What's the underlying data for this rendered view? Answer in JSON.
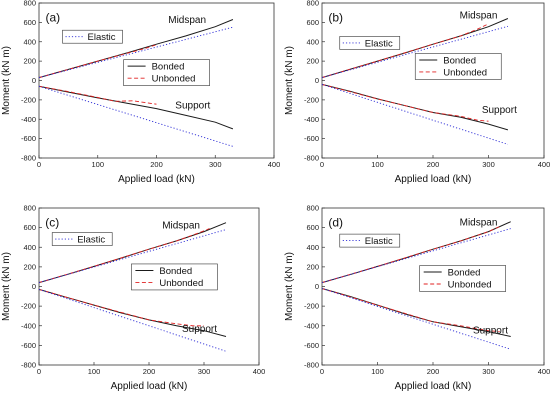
{
  "figure": {
    "colors": {
      "bonded": "#1a1a1a",
      "unbonded": "#e02020",
      "elastic": "#2b2bd6",
      "axis": "#333333"
    }
  },
  "chart_data": [
    {
      "type": "line",
      "panel_label": "(a)",
      "xlabel": "Applied load (kN)",
      "ylabel": "Moment (kN m)",
      "xlim": [
        0,
        400
      ],
      "ylim": [
        -800,
        800
      ],
      "xticks": [
        0,
        100,
        200,
        300,
        400
      ],
      "yticks": [
        -800,
        -600,
        -400,
        -200,
        0,
        200,
        400,
        600,
        800
      ],
      "annotations": {
        "midspan": "Midspan",
        "support": "Support"
      },
      "legend": {
        "elastic": "Elastic",
        "bonded": "Bonded",
        "unbonded": "Unbonded"
      },
      "series": [
        {
          "name": "Bonded",
          "group": "midspan",
          "style": "solid",
          "x": [
            0,
            50,
            100,
            150,
            200,
            250,
            300,
            330
          ],
          "y": [
            30,
            115,
            200,
            285,
            375,
            460,
            555,
            630
          ]
        },
        {
          "name": "Unbonded",
          "group": "midspan",
          "style": "dashed",
          "x": [
            0,
            50,
            100,
            140,
            180,
            200
          ],
          "y": [
            30,
            115,
            200,
            265,
            330,
            370
          ]
        },
        {
          "name": "Elastic",
          "group": "midspan",
          "style": "dotted",
          "x": [
            0,
            330
          ],
          "y": [
            30,
            550
          ]
        },
        {
          "name": "Bonded",
          "group": "support",
          "style": "solid",
          "x": [
            0,
            50,
            100,
            150,
            200,
            250,
            300,
            330
          ],
          "y": [
            -60,
            -120,
            -180,
            -235,
            -290,
            -360,
            -430,
            -500
          ]
        },
        {
          "name": "Unbonded",
          "group": "support",
          "style": "dashed",
          "x": [
            0,
            50,
            100,
            130,
            160,
            200
          ],
          "y": [
            -60,
            -115,
            -175,
            -215,
            -210,
            -245
          ]
        },
        {
          "name": "Elastic",
          "group": "support",
          "style": "dotted",
          "x": [
            0,
            330
          ],
          "y": [
            -60,
            -680
          ]
        }
      ]
    },
    {
      "type": "line",
      "panel_label": "(b)",
      "xlabel": "Applied load (kN)",
      "ylabel": "Moment (kN m)",
      "xlim": [
        0,
        400
      ],
      "ylim": [
        -800,
        800
      ],
      "xticks": [
        0,
        100,
        200,
        300,
        400
      ],
      "yticks": [
        -800,
        -600,
        -400,
        -200,
        0,
        200,
        400,
        600,
        800
      ],
      "annotations": {
        "midspan": "Midspan",
        "support": "Support"
      },
      "legend": {
        "elastic": "Elastic",
        "bonded": "Bonded",
        "unbonded": "Unbonded"
      },
      "series": [
        {
          "name": "Bonded",
          "group": "midspan",
          "style": "solid",
          "x": [
            0,
            50,
            100,
            150,
            200,
            250,
            300,
            335
          ],
          "y": [
            30,
            115,
            200,
            285,
            375,
            460,
            555,
            640
          ]
        },
        {
          "name": "Unbonded",
          "group": "midspan",
          "style": "dashed",
          "x": [
            0,
            100,
            200,
            250,
            280,
            300
          ],
          "y": [
            30,
            200,
            375,
            460,
            530,
            585
          ]
        },
        {
          "name": "Elastic",
          "group": "midspan",
          "style": "dotted",
          "x": [
            0,
            335
          ],
          "y": [
            30,
            560
          ]
        },
        {
          "name": "Bonded",
          "group": "support",
          "style": "solid",
          "x": [
            0,
            50,
            100,
            150,
            200,
            250,
            300,
            335
          ],
          "y": [
            -40,
            -110,
            -190,
            -260,
            -330,
            -380,
            -450,
            -510
          ]
        },
        {
          "name": "Unbonded",
          "group": "support",
          "style": "dashed",
          "x": [
            0,
            100,
            200,
            250,
            280,
            300
          ],
          "y": [
            -40,
            -190,
            -330,
            -370,
            -410,
            -420
          ]
        },
        {
          "name": "Elastic",
          "group": "support",
          "style": "dotted",
          "x": [
            0,
            335
          ],
          "y": [
            -40,
            -660
          ]
        }
      ]
    },
    {
      "type": "line",
      "panel_label": "(c)",
      "xlabel": "Applied load (kN)",
      "ylabel": "Moment (kN m)",
      "xlim": [
        0,
        400
      ],
      "ylim": [
        -800,
        800
      ],
      "xticks": [
        0,
        100,
        200,
        300,
        400
      ],
      "yticks": [
        -800,
        -600,
        -400,
        -200,
        0,
        200,
        400,
        600,
        800
      ],
      "annotations": {
        "midspan": "Midspan",
        "support": "Support"
      },
      "legend": {
        "elastic": "Elastic",
        "bonded": "Bonded",
        "unbonded": "Unbonded"
      },
      "series": [
        {
          "name": "Bonded",
          "group": "midspan",
          "style": "solid",
          "x": [
            0,
            50,
            100,
            150,
            200,
            250,
            300,
            340
          ],
          "y": [
            40,
            120,
            205,
            290,
            380,
            465,
            560,
            650
          ]
        },
        {
          "name": "Unbonded",
          "group": "midspan",
          "style": "dashed",
          "x": [
            0,
            100,
            200,
            250,
            290,
            310
          ],
          "y": [
            40,
            205,
            380,
            465,
            545,
            590
          ]
        },
        {
          "name": "Elastic",
          "group": "midspan",
          "style": "dotted",
          "x": [
            0,
            340
          ],
          "y": [
            40,
            580
          ]
        },
        {
          "name": "Bonded",
          "group": "support",
          "style": "solid",
          "x": [
            0,
            50,
            100,
            150,
            200,
            250,
            300,
            340
          ],
          "y": [
            -30,
            -110,
            -190,
            -270,
            -340,
            -400,
            -450,
            -510
          ]
        },
        {
          "name": "Unbonded",
          "group": "support",
          "style": "dashed",
          "x": [
            0,
            100,
            200,
            250,
            280,
            300
          ],
          "y": [
            -30,
            -190,
            -340,
            -380,
            -400,
            -400
          ]
        },
        {
          "name": "Elastic",
          "group": "support",
          "style": "dotted",
          "x": [
            0,
            340
          ],
          "y": [
            -30,
            -660
          ]
        }
      ]
    },
    {
      "type": "line",
      "panel_label": "(d)",
      "xlabel": "Applied load (kN)",
      "ylabel": "Moment (kN m)",
      "xlim": [
        0,
        400
      ],
      "ylim": [
        -800,
        800
      ],
      "xticks": [
        0,
        100,
        200,
        300,
        400
      ],
      "yticks": [
        -800,
        -600,
        -400,
        -200,
        0,
        200,
        400,
        600,
        800
      ],
      "annotations": {
        "midspan": "Midspan",
        "support": "Support"
      },
      "legend": {
        "elastic": "Elastic",
        "bonded": "Bonded",
        "unbonded": "Unbonded"
      },
      "series": [
        {
          "name": "Bonded",
          "group": "midspan",
          "style": "solid",
          "x": [
            0,
            50,
            100,
            150,
            200,
            250,
            300,
            340
          ],
          "y": [
            40,
            120,
            205,
            290,
            380,
            465,
            560,
            660
          ]
        },
        {
          "name": "Unbonded",
          "group": "midspan",
          "style": "dashed",
          "x": [
            0,
            100,
            200,
            250,
            300,
            320
          ],
          "y": [
            40,
            205,
            380,
            465,
            560,
            610
          ]
        },
        {
          "name": "Elastic",
          "group": "midspan",
          "style": "dotted",
          "x": [
            0,
            340
          ],
          "y": [
            40,
            590
          ]
        },
        {
          "name": "Bonded",
          "group": "support",
          "style": "solid",
          "x": [
            0,
            50,
            100,
            150,
            200,
            250,
            300,
            340
          ],
          "y": [
            -20,
            -100,
            -190,
            -280,
            -360,
            -410,
            -460,
            -510
          ]
        },
        {
          "name": "Unbonded",
          "group": "support",
          "style": "dashed",
          "x": [
            0,
            100,
            200,
            250,
            300,
            320
          ],
          "y": [
            -20,
            -190,
            -360,
            -400,
            -450,
            -460
          ]
        },
        {
          "name": "Elastic",
          "group": "support",
          "style": "dotted",
          "x": [
            0,
            340
          ],
          "y": [
            -20,
            -640
          ]
        }
      ]
    }
  ]
}
